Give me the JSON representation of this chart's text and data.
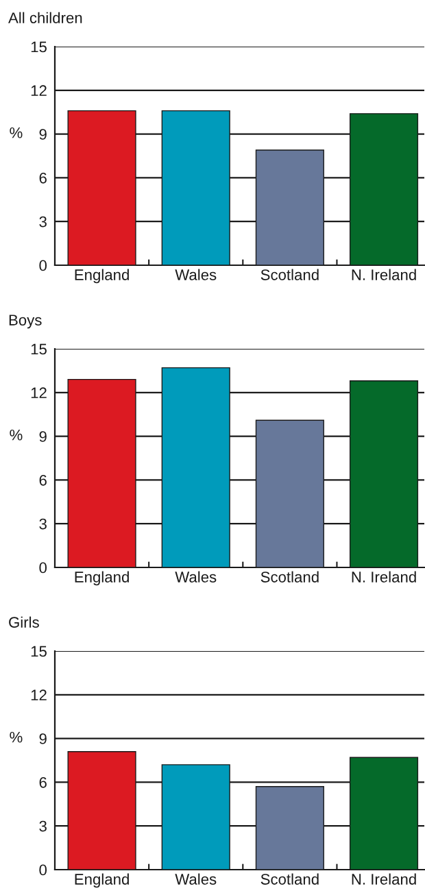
{
  "chart_data": [
    {
      "type": "bar",
      "title": "All children",
      "ylabel": "%",
      "categories": [
        "England",
        "Wales",
        "Scotland",
        "N. Ireland"
      ],
      "values": [
        10.6,
        10.6,
        7.9,
        10.4
      ],
      "colors": [
        "#dc1a22",
        "#009bbb",
        "#67789a",
        "#056a2a"
      ],
      "ylim": [
        0,
        15
      ],
      "yticks": [
        0,
        3,
        6,
        9,
        12,
        15
      ],
      "grid": "y"
    },
    {
      "type": "bar",
      "title": "Boys",
      "ylabel": "%",
      "categories": [
        "England",
        "Wales",
        "Scotland",
        "N. Ireland"
      ],
      "values": [
        12.9,
        13.7,
        10.1,
        12.8
      ],
      "colors": [
        "#dc1a22",
        "#009bbb",
        "#67789a",
        "#056a2a"
      ],
      "ylim": [
        0,
        15
      ],
      "yticks": [
        0,
        3,
        6,
        9,
        12,
        15
      ],
      "grid": "y"
    },
    {
      "type": "bar",
      "title": "Girls",
      "ylabel": "%",
      "categories": [
        "England",
        "Wales",
        "Scotland",
        "N. Ireland"
      ],
      "values": [
        8.1,
        7.2,
        5.7,
        7.7
      ],
      "colors": [
        "#dc1a22",
        "#009bbb",
        "#67789a",
        "#056a2a"
      ],
      "ylim": [
        0,
        15
      ],
      "yticks": [
        0,
        3,
        6,
        9,
        12,
        15
      ],
      "grid": "y"
    }
  ]
}
